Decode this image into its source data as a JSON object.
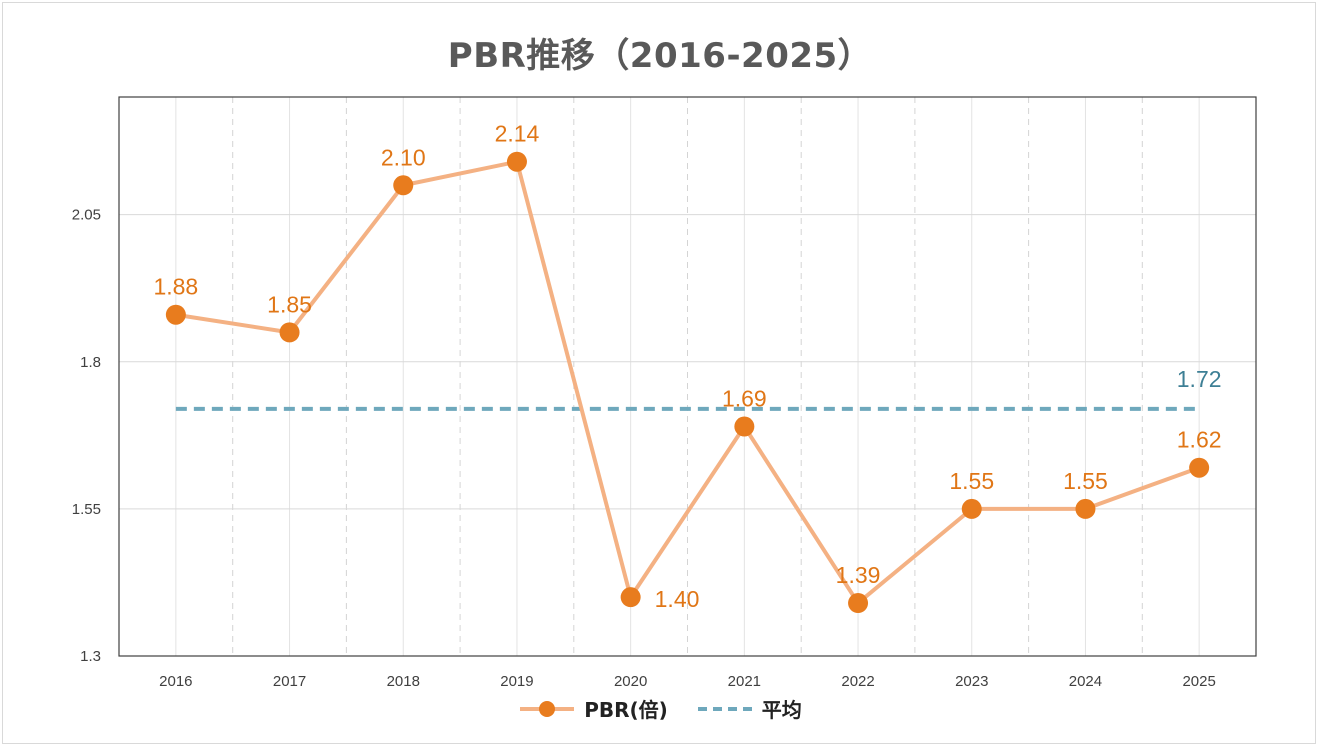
{
  "chart_data": {
    "type": "line",
    "title": "PBR推移（2016-2025）",
    "categories": [
      "2016",
      "2017",
      "2018",
      "2019",
      "2020",
      "2021",
      "2022",
      "2023",
      "2024",
      "2025"
    ],
    "series": [
      {
        "name": "PBR(倍)",
        "values": [
          1.88,
          1.85,
          2.1,
          2.14,
          1.4,
          1.69,
          1.39,
          1.55,
          1.55,
          1.62
        ],
        "data_labels": [
          "1.88",
          "1.85",
          "2.10",
          "2.14",
          "1.40",
          "1.69",
          "1.39",
          "1.55",
          "1.55",
          "1.62"
        ],
        "color": "#f4b183",
        "marker_color": "#e87c1e",
        "label_color": "#e07616"
      },
      {
        "name": "平均",
        "value": 1.72,
        "label": "1.72",
        "style": "dashed",
        "color": "#6ea8bc",
        "label_color": "#3d7f95"
      }
    ],
    "y_ticks": [
      "1.3",
      "1.55",
      "1.8",
      "2.05"
    ],
    "ylim": [
      1.3,
      2.25
    ],
    "grid": true,
    "legend_position": "bottom"
  }
}
